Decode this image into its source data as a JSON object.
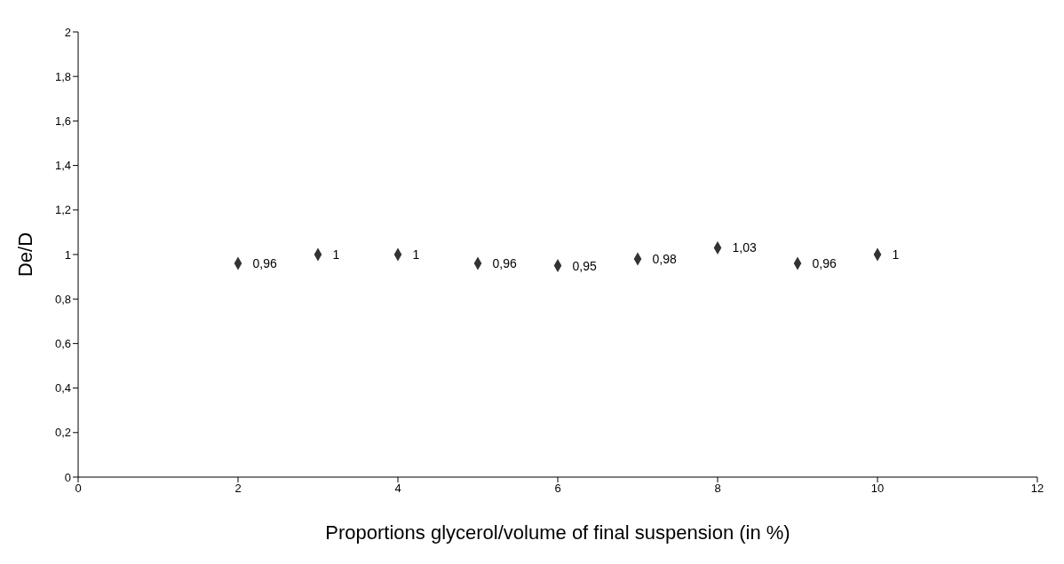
{
  "chart_data": {
    "type": "scatter",
    "xlabel": "Proportions glycerol/volume of final suspension (in %)",
    "ylabel": "De/D",
    "x": [
      2,
      3,
      4,
      5,
      6,
      7,
      8,
      9,
      10
    ],
    "values": [
      0.96,
      1,
      1,
      0.96,
      0.95,
      0.98,
      1.03,
      0.96,
      1
    ],
    "value_labels": [
      "0,96",
      "1",
      "1",
      "0,96",
      "0,95",
      "0,98",
      "1,03",
      "0,96",
      "1"
    ],
    "color": "#333333",
    "marker": "diamond",
    "grid": false,
    "legend": false,
    "xlim": [
      0,
      12
    ],
    "xticks": [
      0,
      2,
      4,
      6,
      8,
      10,
      12
    ],
    "ylim": [
      0,
      2
    ],
    "yticks": [
      0,
      {
        "value": 0.2,
        "label": "0,2"
      },
      {
        "value": 0.4,
        "label": "0,4"
      },
      {
        "value": 0.6,
        "label": "0,6"
      },
      {
        "value": 0.8,
        "label": "0,8"
      },
      1,
      {
        "value": 1.2,
        "label": "1,2"
      },
      {
        "value": 1.4,
        "label": "1,4"
      },
      {
        "value": 1.6,
        "label": "1,6"
      },
      {
        "value": 1.8,
        "label": "1,8"
      },
      2
    ]
  }
}
